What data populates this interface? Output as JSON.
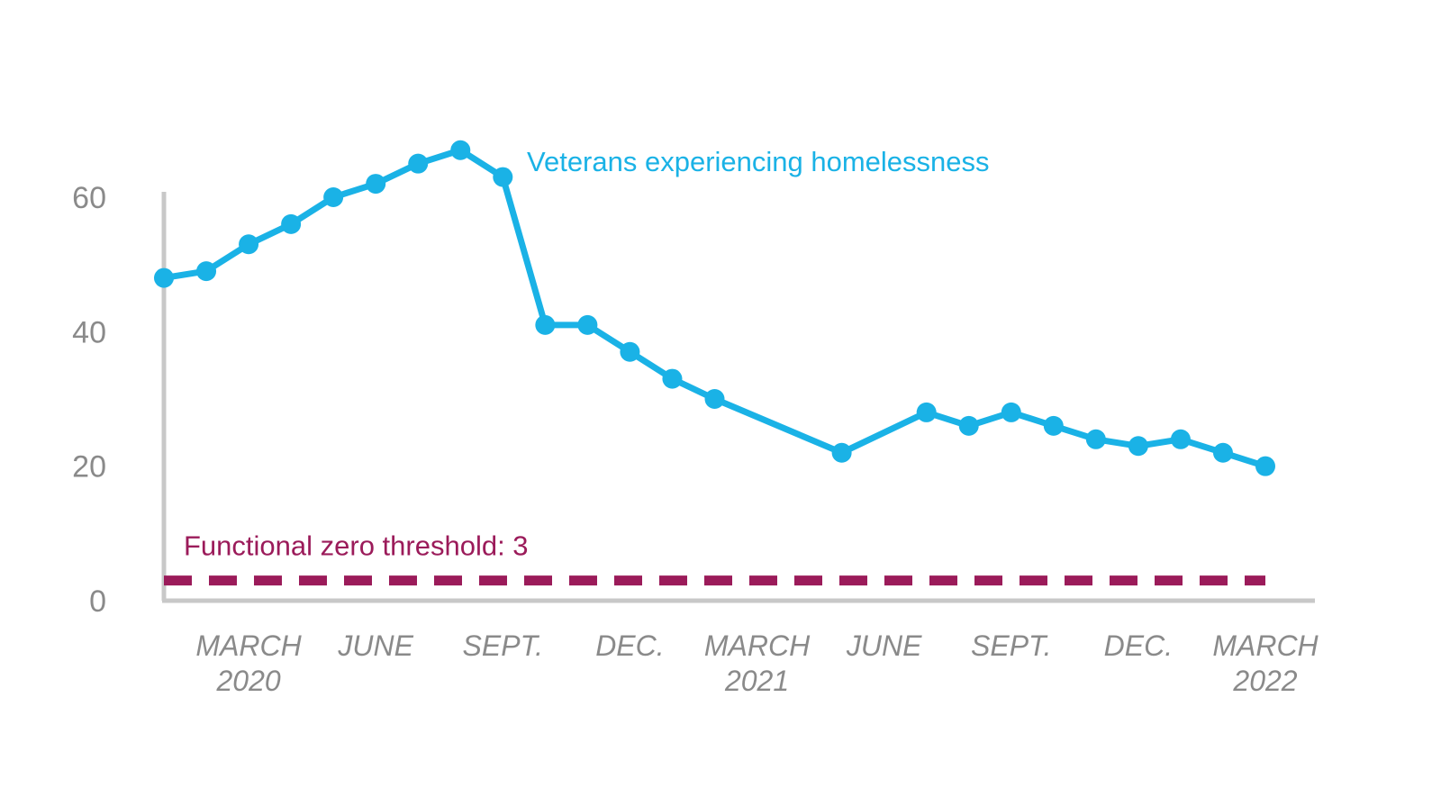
{
  "chart_data": {
    "type": "line",
    "title": "",
    "xlabel": "",
    "ylabel": "",
    "ylim": [
      0,
      60
    ],
    "yticks": [
      0,
      20,
      40,
      60
    ],
    "grid": false,
    "series": [
      {
        "name": "Veterans experiencing homelessness",
        "color": "#1ab2e6",
        "x": [
          0,
          1,
          2,
          3,
          4,
          5,
          6,
          7,
          8,
          9,
          10,
          11,
          12,
          13,
          16,
          18,
          19,
          20,
          21,
          22,
          23,
          24,
          25,
          26
        ],
        "values": [
          48,
          49,
          53,
          56,
          60,
          62,
          65,
          67,
          63,
          41,
          41,
          37,
          33,
          30,
          22,
          28,
          26,
          28,
          26,
          24,
          23,
          24,
          22,
          20
        ]
      }
    ],
    "x_ticks": [
      {
        "pos": 2,
        "line1": "MARCH",
        "line2": "2020"
      },
      {
        "pos": 5,
        "line1": "JUNE",
        "line2": ""
      },
      {
        "pos": 8,
        "line1": "SEPT.",
        "line2": ""
      },
      {
        "pos": 11,
        "line1": "DEC.",
        "line2": ""
      },
      {
        "pos": 14,
        "line1": "MARCH",
        "line2": "2021"
      },
      {
        "pos": 17,
        "line1": "JUNE",
        "line2": ""
      },
      {
        "pos": 20,
        "line1": "SEPT.",
        "line2": ""
      },
      {
        "pos": 23,
        "line1": "DEC.",
        "line2": ""
      },
      {
        "pos": 26,
        "line1": "MARCH",
        "line2": "2022"
      }
    ],
    "xlim": [
      0,
      26
    ],
    "threshold": {
      "value": 3,
      "label": "Functional zero threshold: 3",
      "color": "#9b1b5a"
    },
    "axis_color": "#c8c8c8"
  }
}
